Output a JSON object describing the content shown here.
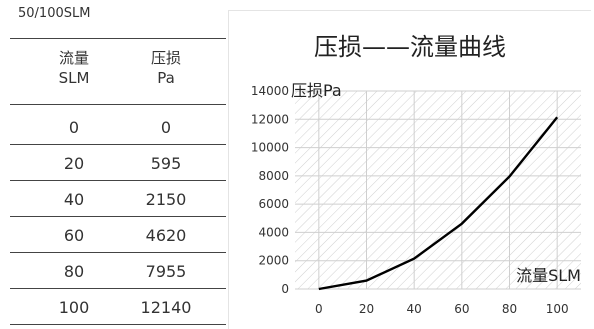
{
  "table": {
    "caption": "50/100SLM",
    "headers": [
      {
        "line1": "流量",
        "line2": "SLM"
      },
      {
        "line1": "压损",
        "line2": "Pa"
      }
    ],
    "rows": [
      [
        "0",
        "0"
      ],
      [
        "20",
        "595"
      ],
      [
        "40",
        "2150"
      ],
      [
        "60",
        "4620"
      ],
      [
        "80",
        "7955"
      ],
      [
        "100",
        "12140"
      ]
    ]
  },
  "chart_data": {
    "type": "line",
    "title": "压损——流量曲线",
    "xlabel": "流量SLM",
    "ylabel": "压损Pa",
    "x": [
      0,
      20,
      40,
      60,
      80,
      100
    ],
    "series": [
      {
        "values": [
          0,
          595,
          2150,
          4620,
          7955,
          12140
        ]
      }
    ],
    "xticks": [
      0,
      20,
      40,
      60,
      80,
      100
    ],
    "yticks": [
      0,
      2000,
      4000,
      6000,
      8000,
      10000,
      12000,
      14000
    ],
    "xlim": [
      -10,
      110
    ],
    "ylim": [
      0,
      14000
    ],
    "grid": true,
    "line_color": "#000000",
    "hatch_color": "#d0d0d0"
  }
}
